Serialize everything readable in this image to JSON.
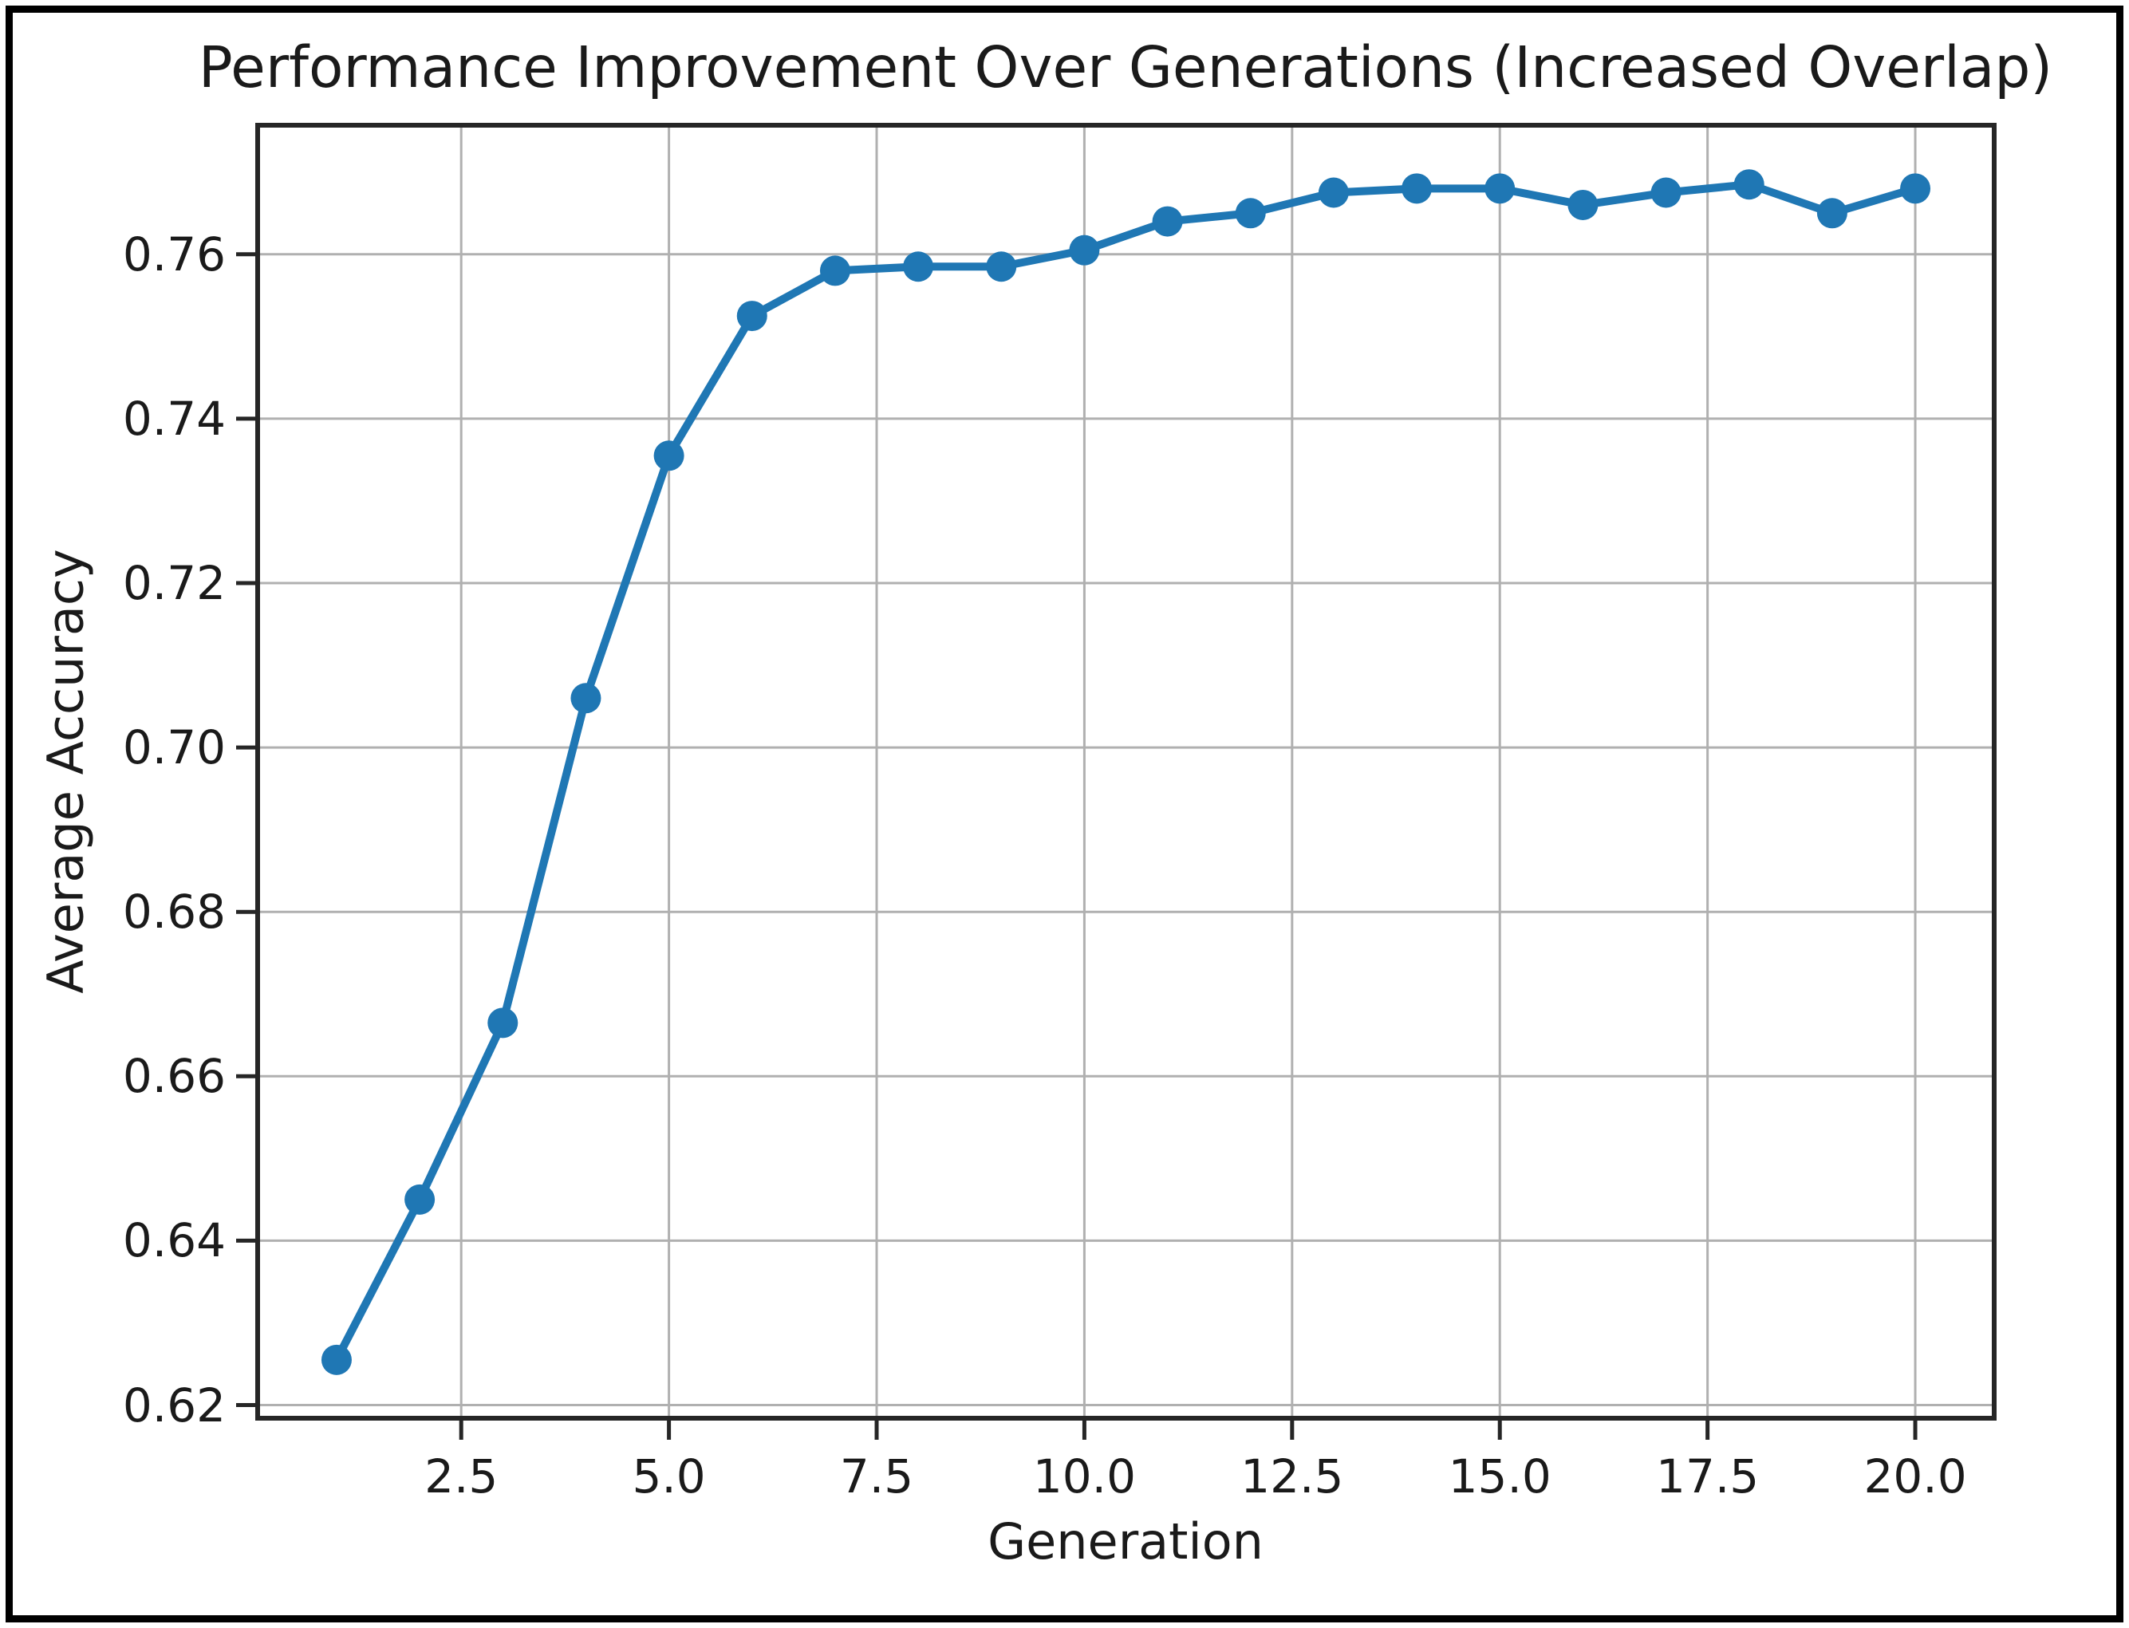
{
  "figure": {
    "background": "#ffffff",
    "frame_color": "#000000"
  },
  "chart_data": {
    "type": "line",
    "title": "Performance Improvement Over Generations (Increased Overlap)",
    "xlabel": "Generation",
    "ylabel": "Average Accuracy",
    "x": [
      1,
      2,
      3,
      4,
      5,
      6,
      7,
      8,
      9,
      10,
      11,
      12,
      13,
      14,
      15,
      16,
      17,
      18,
      19,
      20
    ],
    "y": [
      0.6255,
      0.645,
      0.6665,
      0.706,
      0.7355,
      0.7525,
      0.758,
      0.7585,
      0.7585,
      0.7605,
      0.764,
      0.765,
      0.7675,
      0.768,
      0.768,
      0.766,
      0.7675,
      0.7685,
      0.765,
      0.768
    ],
    "series_name": "Average Accuracy",
    "xlim": [
      0.05,
      20.95
    ],
    "ylim": [
      0.6184,
      0.7757
    ],
    "x_ticks": {
      "values": [
        2.5,
        5,
        7.5,
        10,
        12.5,
        15,
        17.5,
        20
      ],
      "labels": [
        "2.5",
        "5.0",
        "7.5",
        "10.0",
        "12.5",
        "15.0",
        "17.5",
        "20.0"
      ]
    },
    "y_ticks": {
      "values": [
        0.62,
        0.64,
        0.66,
        0.68,
        0.7,
        0.72,
        0.74,
        0.76
      ],
      "labels": [
        "0.62",
        "0.64",
        "0.66",
        "0.68",
        "0.70",
        "0.72",
        "0.74",
        "0.76"
      ]
    },
    "grid": true,
    "legend": "none",
    "marker": "circle",
    "line_color": "#1f77b4",
    "grid_color": "#b0b0b0",
    "spine_color": "#262626",
    "tick_text_color": "#1a1a1a"
  }
}
